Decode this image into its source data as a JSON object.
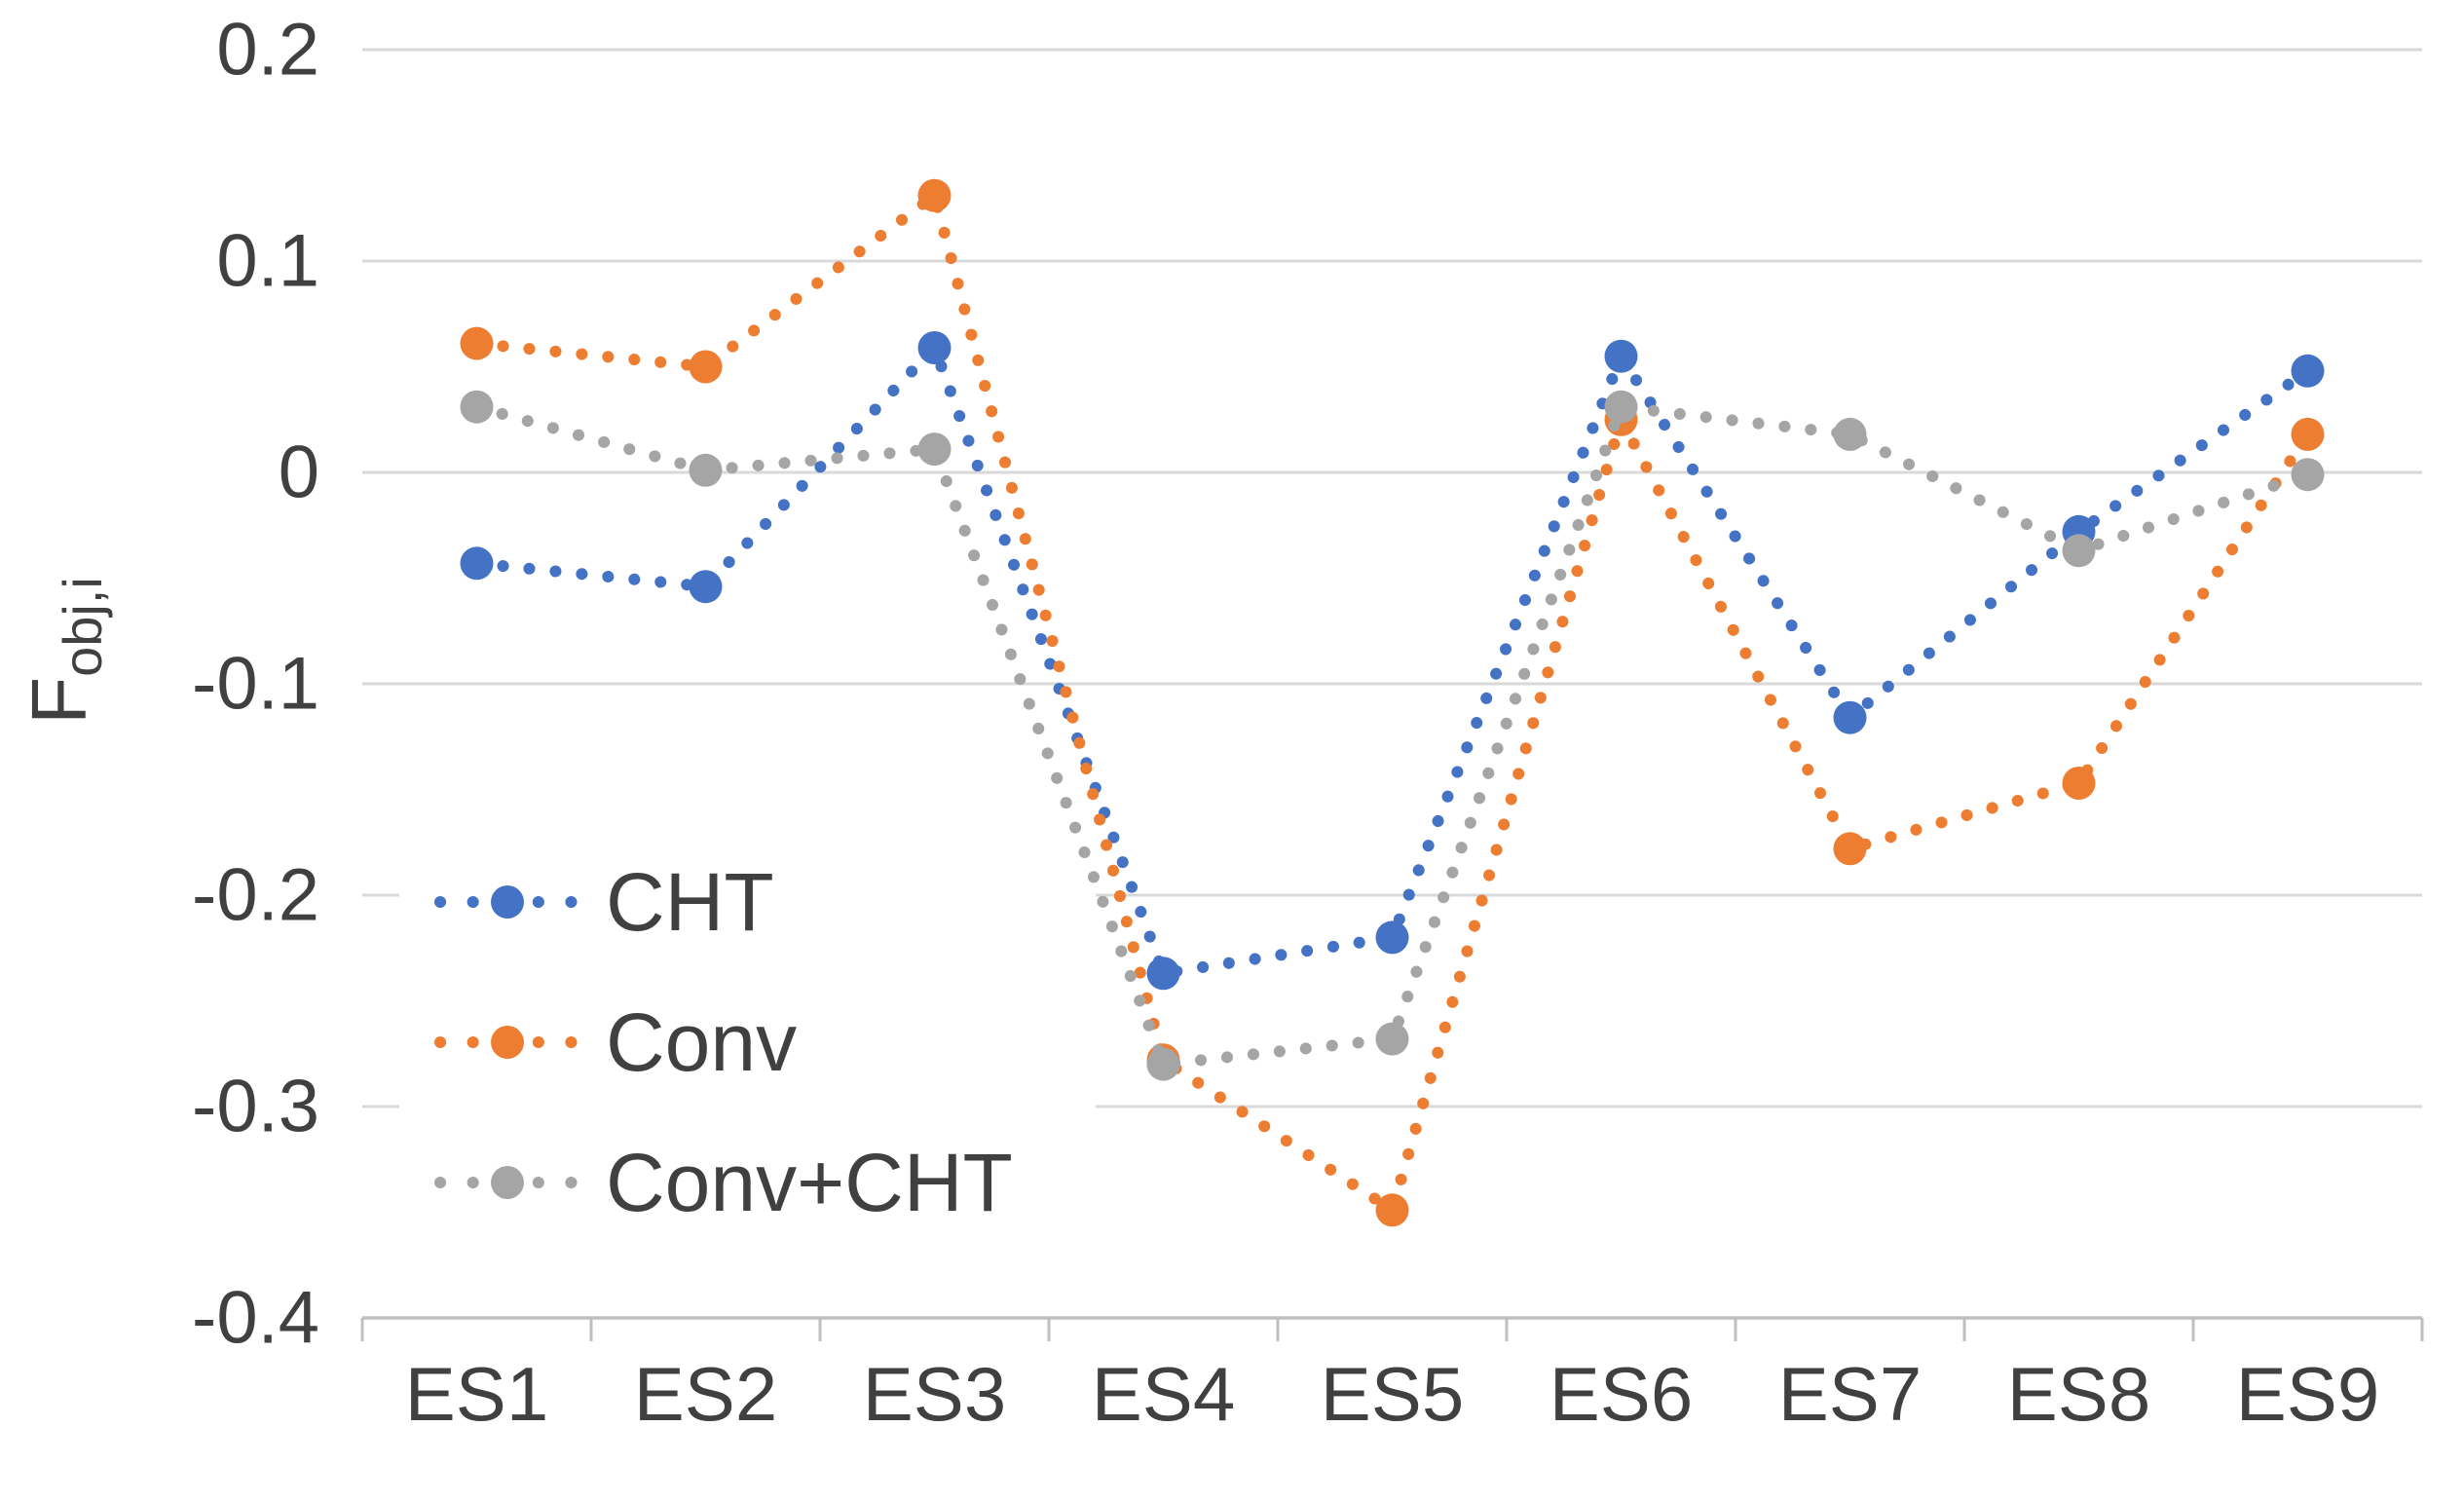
{
  "chart_data": {
    "type": "line",
    "title": "",
    "categories": [
      "ES1",
      "ES2",
      "ES3",
      "ES4",
      "ES5",
      "ES6",
      "ES7",
      "ES8",
      "ES9"
    ],
    "series": [
      {
        "name": "CHT",
        "color": "#4472C4",
        "values": [
          -0.043,
          -0.054,
          0.059,
          -0.237,
          -0.22,
          0.055,
          -0.116,
          -0.028,
          0.048
        ]
      },
      {
        "name": "Conv",
        "color": "#ED7D31",
        "values": [
          0.061,
          0.05,
          0.131,
          -0.278,
          -0.349,
          0.025,
          -0.178,
          -0.147,
          0.018
        ]
      },
      {
        "name": "Conv+CHT",
        "color": "#A5A5A5",
        "values": [
          0.031,
          0.001,
          0.011,
          -0.28,
          -0.268,
          0.031,
          0.018,
          -0.037,
          -0.001
        ]
      }
    ],
    "ylabel": {
      "base": "F",
      "subscript": "obj,i"
    },
    "xlabel": "",
    "ylim": [
      -0.4,
      0.2
    ],
    "ytick_step": 0.1,
    "ytick_labels": [
      "0.2",
      "0.1",
      "0",
      "-0.1",
      "-0.2",
      "-0.3",
      "-0.4"
    ],
    "grid": true,
    "line_style": "dotted",
    "legend_position": "inside-left",
    "colors": {
      "gridline": "#D9D9D9",
      "axis": "#BFBFBF",
      "text": "#404040",
      "background": "#FFFFFF"
    }
  }
}
